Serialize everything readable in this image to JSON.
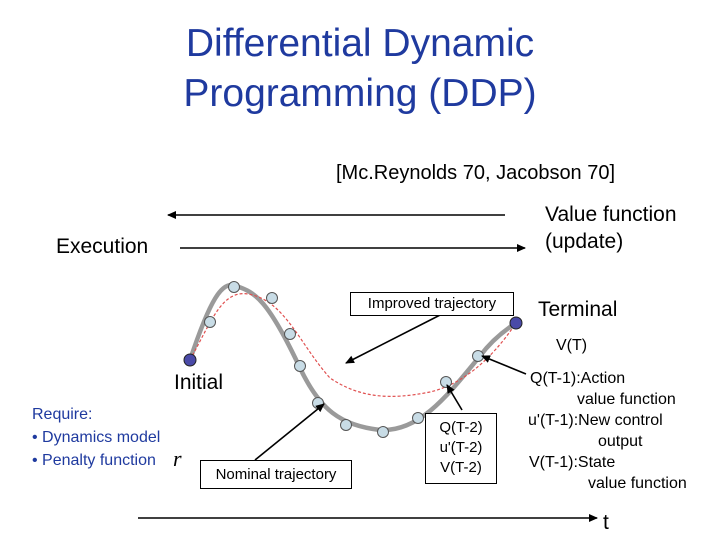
{
  "title": {
    "line1": "Differential Dynamic",
    "line2": "Programming (DDP)"
  },
  "citation": "[Mc.Reynolds 70, Jacobson 70]",
  "labels": {
    "execution": "Execution",
    "value_function_line1": "Value function",
    "value_function_line2": "(update)",
    "improved_trajectory": "Improved trajectory",
    "terminal": "Terminal",
    "v_terminal": "V(T)",
    "initial": "Initial",
    "nominal_trajectory": "Nominal trajectory",
    "t_axis": "t",
    "penalty_symbol": "r"
  },
  "require": {
    "heading": "Require:",
    "items": [
      "• Dynamics model",
      "• Penalty function"
    ]
  },
  "step_t2": {
    "q": "Q(T-2)",
    "u": "u'(T-2)",
    "v": "V(T-2)"
  },
  "step_t1": {
    "line1": "Q(T-1):Action",
    "line2": "value function",
    "line3": "u'(T-1):New control",
    "line4": "output",
    "line5": "V(T-1):State",
    "line6": "value function"
  },
  "colors": {
    "title": "#1f3a9f",
    "require": "#1f3a9f",
    "nominal_curve": "#999999",
    "improved_curve": "#e05050",
    "node_fill": "#c8dce6",
    "endpoint_fill": "#4a4aa8"
  }
}
